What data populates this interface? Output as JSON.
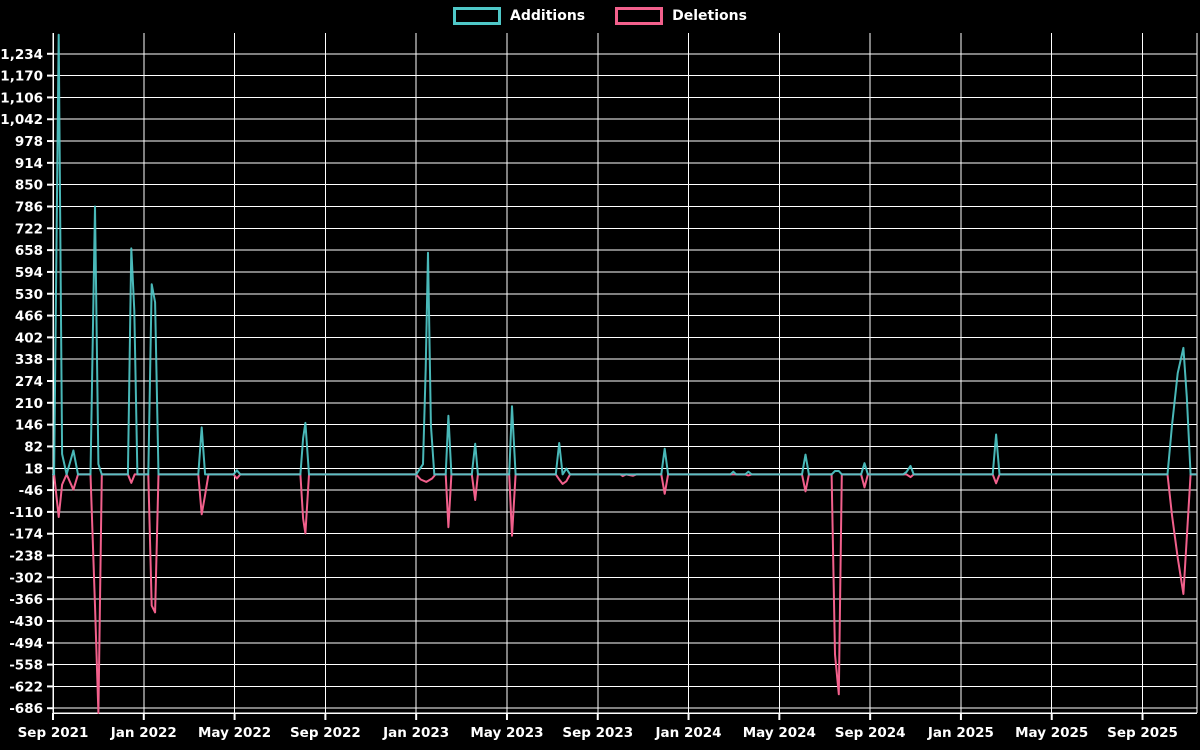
{
  "legend": {
    "items": [
      {
        "label": "Additions",
        "color": "#4fc8c8"
      },
      {
        "label": "Deletions",
        "color": "#f2608c"
      }
    ]
  },
  "chart_data": {
    "type": "line",
    "title": "",
    "xlabel": "",
    "ylabel": "",
    "background": "#000000",
    "grid": true,
    "legend_position": "top-center",
    "gridline_color": "#ffffff",
    "x_axis": {
      "tick_labels": [
        "Sep 2021",
        "Jan 2022",
        "May 2022",
        "Sep 2022",
        "Jan 2023",
        "May 2023",
        "Sep 2023",
        "Jan 2024",
        "May 2024",
        "Sep 2024",
        "Jan 2025",
        "May 2025",
        "Sep 2025"
      ],
      "months_per_tick": 4,
      "x_unit": "months_since_first_tick",
      "xlim": [
        0,
        50.4
      ]
    },
    "y_axis": {
      "tick_labels": [
        "1,234",
        "1,170",
        "1,106",
        "1,042",
        "978",
        "914",
        "850",
        "786",
        "722",
        "658",
        "594",
        "530",
        "466",
        "402",
        "338",
        "274",
        "210",
        "146",
        "82",
        "18",
        "-46",
        "-110",
        "-174",
        "-238",
        "-302",
        "-366",
        "-430",
        "-494",
        "-558",
        "-622",
        "-686"
      ],
      "tick_values": [
        1234,
        1170,
        1106,
        1042,
        978,
        914,
        850,
        786,
        722,
        658,
        594,
        530,
        466,
        402,
        338,
        274,
        210,
        146,
        82,
        18,
        -46,
        -110,
        -174,
        -238,
        -302,
        -366,
        -430,
        -494,
        -558,
        -622,
        -686
      ],
      "ylim": [
        -700,
        1295
      ]
    },
    "series": [
      {
        "name": "Additions",
        "color": "#4fc8c8",
        "points": [
          [
            0,
            0
          ],
          [
            0.05,
            0
          ],
          [
            0.25,
            1290
          ],
          [
            0.4,
            60
          ],
          [
            0.6,
            0
          ],
          [
            0.9,
            70
          ],
          [
            1.1,
            0
          ],
          [
            1.65,
            0
          ],
          [
            1.85,
            786
          ],
          [
            2.0,
            30
          ],
          [
            2.15,
            0
          ],
          [
            3.3,
            0
          ],
          [
            3.45,
            663
          ],
          [
            3.58,
            481
          ],
          [
            3.72,
            0
          ],
          [
            4.2,
            0
          ],
          [
            4.35,
            558
          ],
          [
            4.5,
            505
          ],
          [
            4.65,
            0
          ],
          [
            6.4,
            0
          ],
          [
            6.55,
            138
          ],
          [
            6.7,
            0
          ],
          [
            7.95,
            0
          ],
          [
            8.1,
            12
          ],
          [
            8.25,
            0
          ],
          [
            10.9,
            0
          ],
          [
            11.02,
            106
          ],
          [
            11.12,
            151
          ],
          [
            11.28,
            0
          ],
          [
            16.0,
            0
          ],
          [
            16.3,
            30
          ],
          [
            16.42,
            310
          ],
          [
            16.52,
            650
          ],
          [
            16.65,
            145
          ],
          [
            16.8,
            0
          ],
          [
            17.3,
            0
          ],
          [
            17.42,
            172
          ],
          [
            17.55,
            0
          ],
          [
            18.45,
            0
          ],
          [
            18.6,
            90
          ],
          [
            18.72,
            0
          ],
          [
            20.1,
            0
          ],
          [
            20.22,
            200
          ],
          [
            20.38,
            0
          ],
          [
            22.15,
            0
          ],
          [
            22.3,
            92
          ],
          [
            22.45,
            0
          ],
          [
            22.62,
            17
          ],
          [
            22.78,
            0
          ],
          [
            26.8,
            0
          ],
          [
            26.95,
            75
          ],
          [
            27.1,
            0
          ],
          [
            29.85,
            0
          ],
          [
            29.97,
            8
          ],
          [
            30.1,
            0
          ],
          [
            30.5,
            0
          ],
          [
            30.63,
            8
          ],
          [
            30.78,
            0
          ],
          [
            33.0,
            0
          ],
          [
            33.15,
            58
          ],
          [
            33.3,
            0
          ],
          [
            34.3,
            0
          ],
          [
            34.45,
            10
          ],
          [
            34.62,
            10
          ],
          [
            34.75,
            0
          ],
          [
            35.6,
            0
          ],
          [
            35.75,
            33
          ],
          [
            35.9,
            0
          ],
          [
            37.45,
            0
          ],
          [
            37.6,
            7
          ],
          [
            37.78,
            25
          ],
          [
            37.92,
            0
          ],
          [
            41.4,
            0
          ],
          [
            41.55,
            117
          ],
          [
            41.7,
            0
          ],
          [
            49.1,
            0
          ],
          [
            49.3,
            144
          ],
          [
            49.55,
            297
          ],
          [
            49.8,
            371
          ],
          [
            49.95,
            227
          ],
          [
            50.12,
            0
          ],
          [
            50.35,
            0
          ]
        ]
      },
      {
        "name": "Deletions",
        "color": "#f2608c",
        "points": [
          [
            0,
            0
          ],
          [
            0.05,
            0
          ],
          [
            0.25,
            -125
          ],
          [
            0.4,
            -30
          ],
          [
            0.6,
            0
          ],
          [
            0.9,
            -45
          ],
          [
            1.1,
            0
          ],
          [
            1.65,
            0
          ],
          [
            1.85,
            -385
          ],
          [
            2.0,
            -708
          ],
          [
            2.15,
            0
          ],
          [
            3.3,
            0
          ],
          [
            3.45,
            -25
          ],
          [
            3.6,
            0
          ],
          [
            4.2,
            0
          ],
          [
            4.35,
            -385
          ],
          [
            4.5,
            -405
          ],
          [
            4.65,
            0
          ],
          [
            6.4,
            0
          ],
          [
            6.55,
            -117
          ],
          [
            6.7,
            -60
          ],
          [
            6.85,
            0
          ],
          [
            7.95,
            0
          ],
          [
            8.1,
            -12
          ],
          [
            8.25,
            0
          ],
          [
            10.9,
            0
          ],
          [
            11.02,
            -129
          ],
          [
            11.12,
            -173
          ],
          [
            11.28,
            0
          ],
          [
            16.0,
            0
          ],
          [
            16.2,
            -15
          ],
          [
            16.45,
            -22
          ],
          [
            16.7,
            -12
          ],
          [
            16.85,
            0
          ],
          [
            17.3,
            0
          ],
          [
            17.42,
            -155
          ],
          [
            17.55,
            0
          ],
          [
            18.45,
            0
          ],
          [
            18.6,
            -75
          ],
          [
            18.72,
            0
          ],
          [
            20.1,
            0
          ],
          [
            20.22,
            -180
          ],
          [
            20.38,
            0
          ],
          [
            22.15,
            0
          ],
          [
            22.3,
            -15
          ],
          [
            22.45,
            -28
          ],
          [
            22.62,
            -20
          ],
          [
            22.78,
            0
          ],
          [
            25.0,
            0
          ],
          [
            25.1,
            -5
          ],
          [
            25.25,
            0
          ],
          [
            25.55,
            -4
          ],
          [
            25.7,
            0
          ],
          [
            26.8,
            0
          ],
          [
            26.95,
            -57
          ],
          [
            27.1,
            0
          ],
          [
            30.5,
            0
          ],
          [
            30.63,
            -3
          ],
          [
            30.78,
            0
          ],
          [
            33.0,
            0
          ],
          [
            33.15,
            -50
          ],
          [
            33.3,
            0
          ],
          [
            34.3,
            0
          ],
          [
            34.45,
            -528
          ],
          [
            34.62,
            -645
          ],
          [
            34.75,
            0
          ],
          [
            35.6,
            0
          ],
          [
            35.75,
            -38
          ],
          [
            35.9,
            0
          ],
          [
            37.45,
            0
          ],
          [
            37.6,
            0
          ],
          [
            37.78,
            -8
          ],
          [
            37.92,
            0
          ],
          [
            41.4,
            0
          ],
          [
            41.55,
            -26
          ],
          [
            41.7,
            0
          ],
          [
            49.1,
            0
          ],
          [
            49.3,
            -120
          ],
          [
            49.55,
            -244
          ],
          [
            49.8,
            -351
          ],
          [
            49.95,
            -185
          ],
          [
            50.12,
            0
          ],
          [
            50.35,
            0
          ]
        ]
      }
    ]
  }
}
